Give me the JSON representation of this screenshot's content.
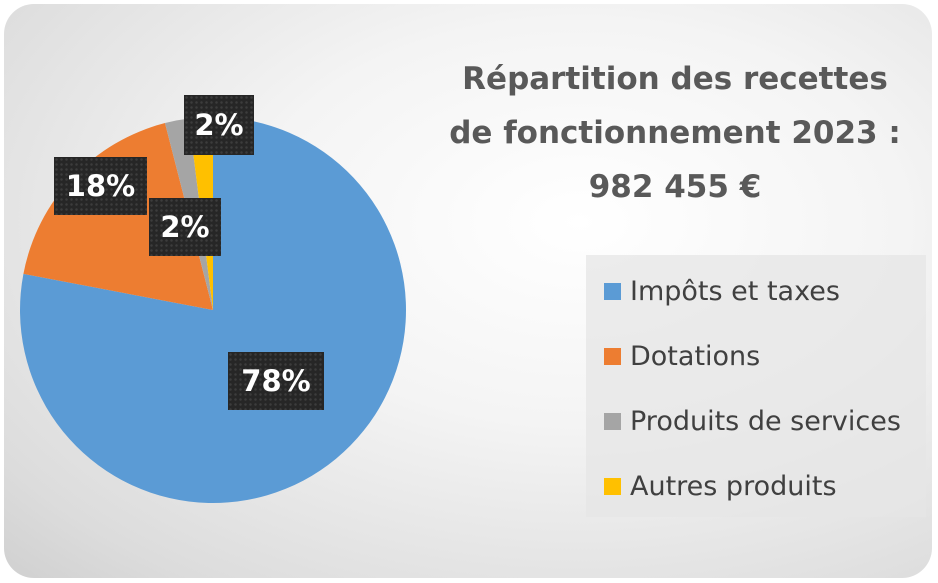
{
  "chart_data": {
    "type": "pie",
    "title_lines": [
      "Répartition des recettes",
      "de fonctionnement 2023 :",
      "982 455 €"
    ],
    "categories": [
      "Impôts et taxes",
      "Dotations",
      "Produits de services",
      "Autres produits"
    ],
    "values": [
      78,
      18,
      2,
      2
    ],
    "data_labels": [
      "78%",
      "18%",
      "2%",
      "2%"
    ],
    "colors": [
      "#5b9bd5",
      "#ed7d31",
      "#a5a5a5",
      "#ffc000"
    ],
    "legend_position": "right",
    "start_angle_deg": 0,
    "direction": "clockwise"
  }
}
